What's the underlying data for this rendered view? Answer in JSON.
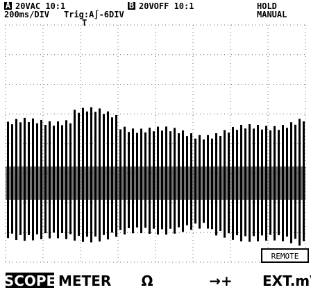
{
  "header": {
    "channel_a": {
      "badge": "A",
      "setting": "20VAC 10:1"
    },
    "channel_b": {
      "badge": "B",
      "setting": "20VOFF 10:1"
    },
    "status": "HOLD",
    "mode": "MANUAL",
    "timebase": "200ms/DIV",
    "trigger": "Trig:A∫-6DIV",
    "trigger_marker": "T"
  },
  "remote": "REMOTE",
  "menu": [
    "SCOPE",
    "METER",
    "Ω",
    "→+",
    "EXT.mV"
  ]
}
